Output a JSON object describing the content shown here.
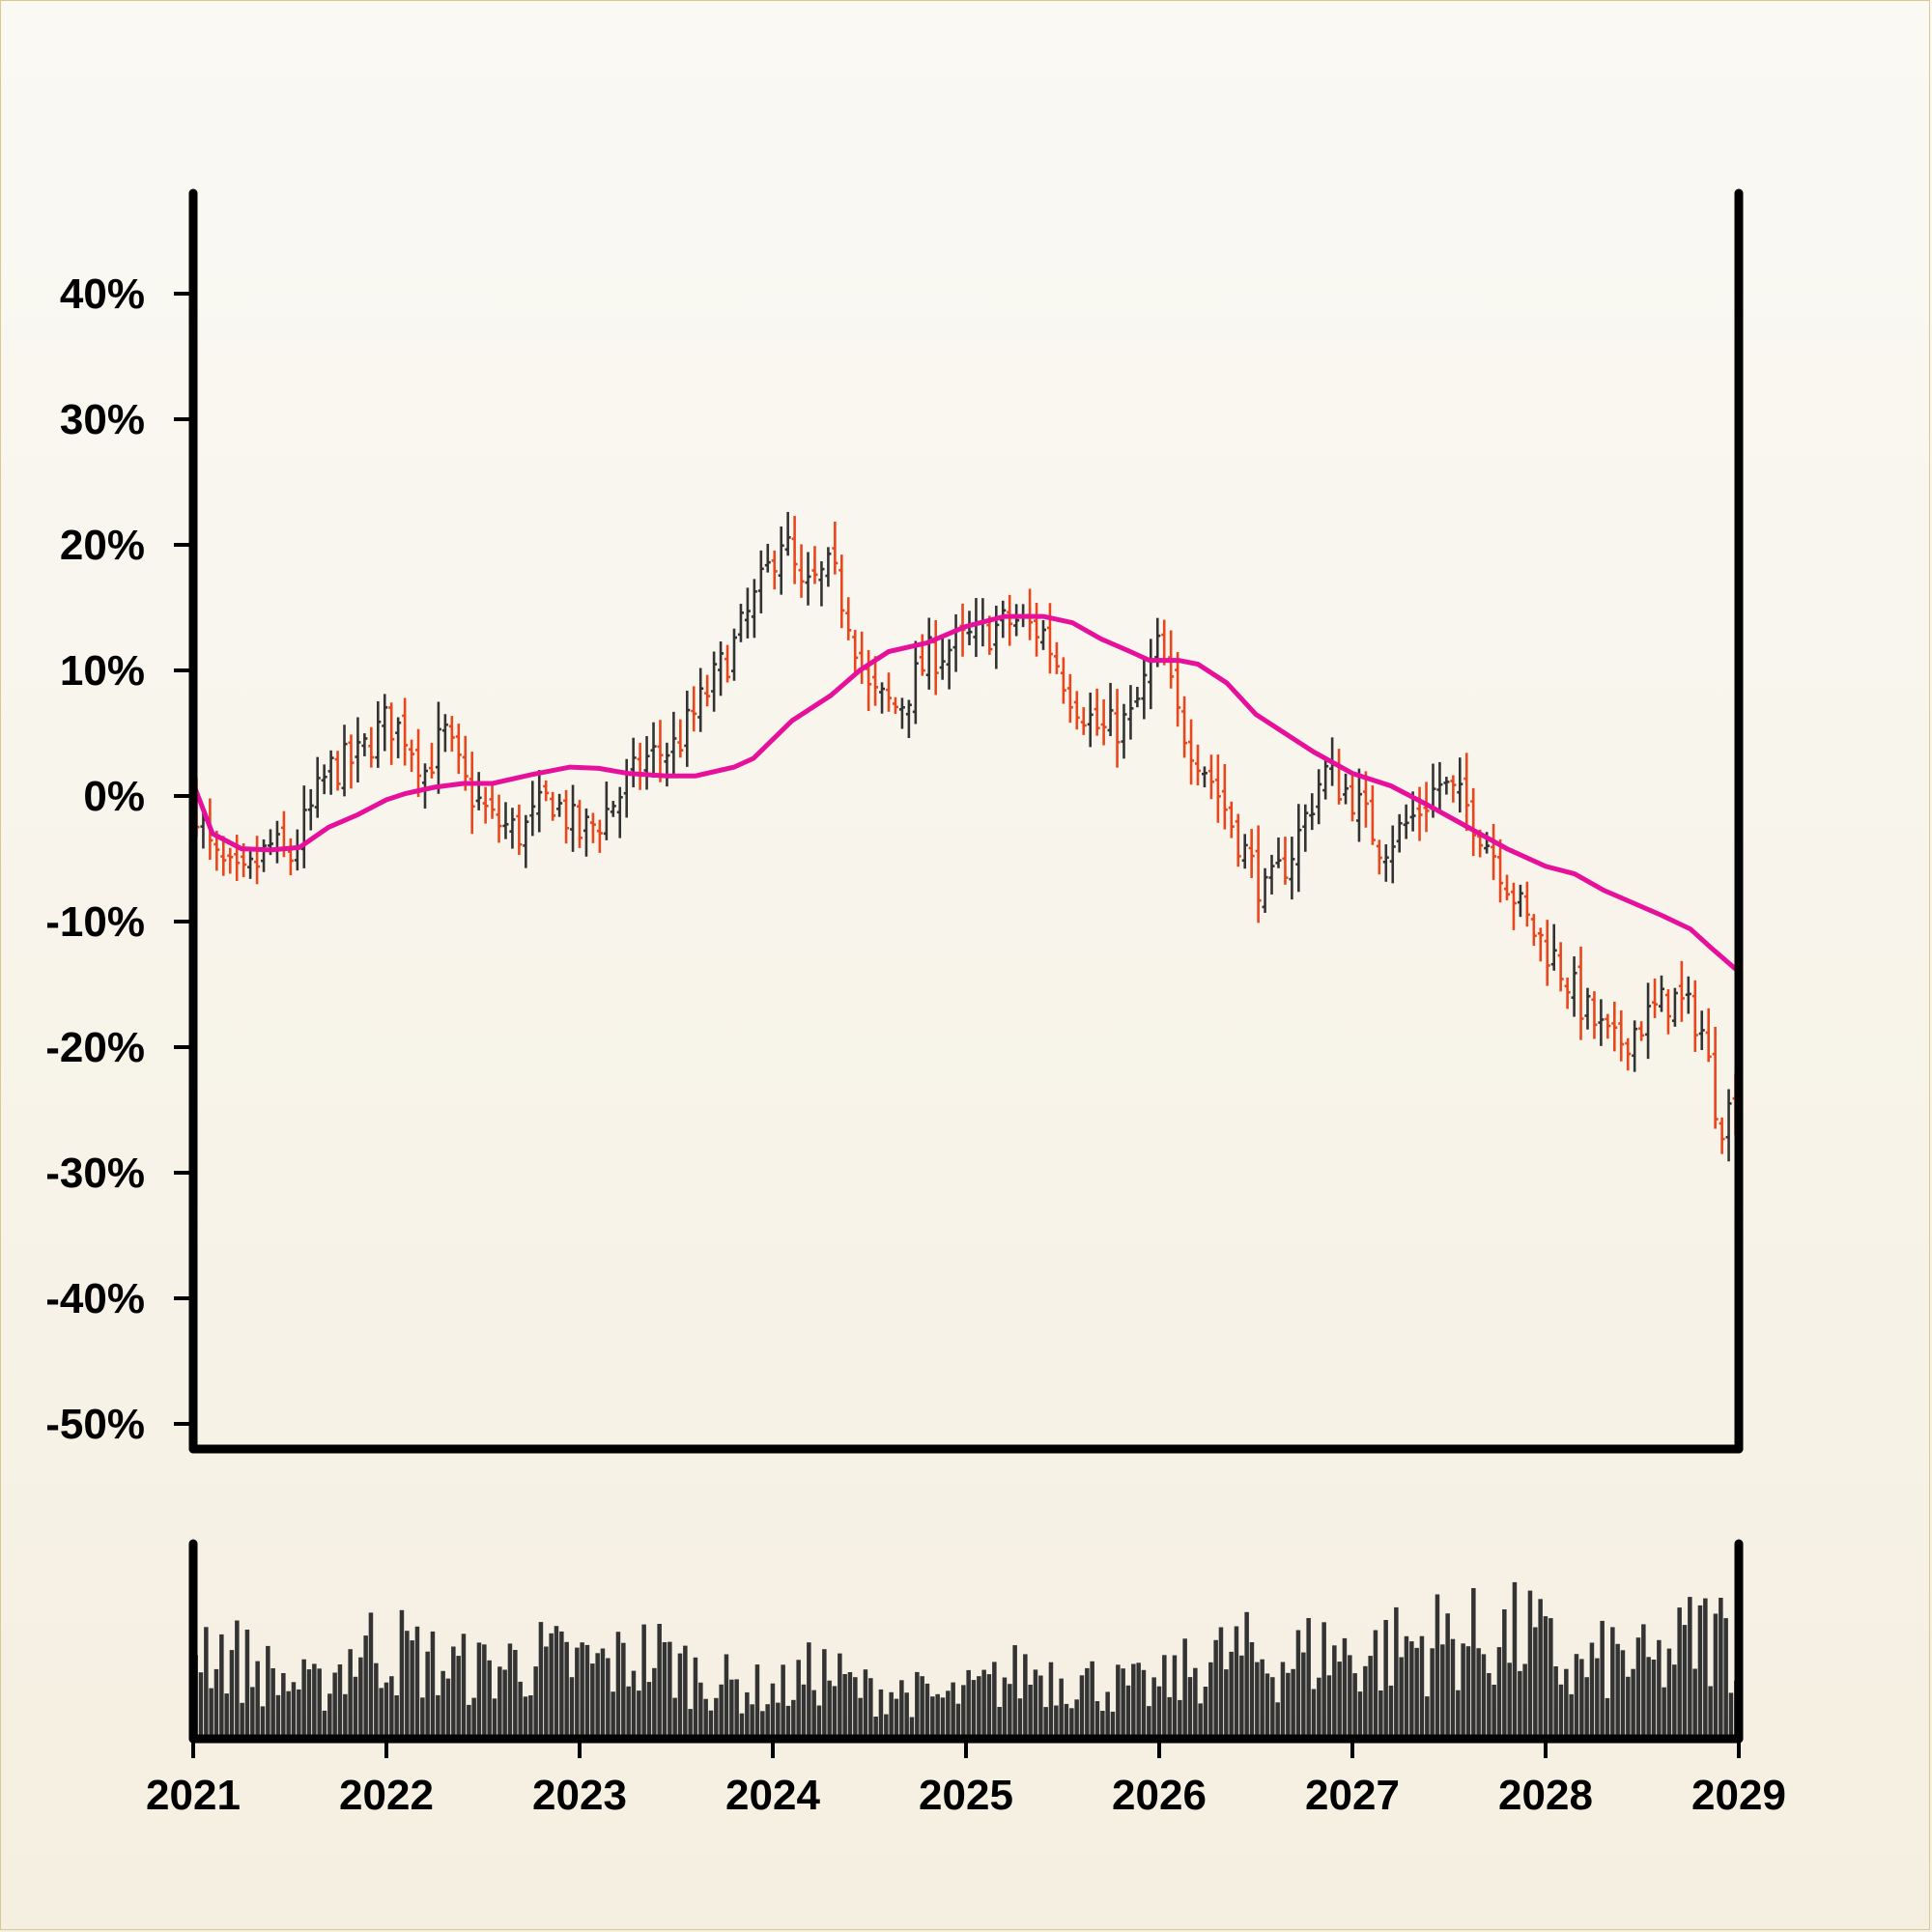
{
  "chart_data": {
    "type": "ohlc",
    "price_axis": {
      "ylim": [
        -52,
        48
      ],
      "ticks": [
        40,
        30,
        20,
        10,
        0,
        -10,
        -20,
        -30,
        -40,
        -50
      ],
      "tick_labels": [
        "40%",
        "30%",
        "20%",
        "10%",
        "0%",
        "-10%",
        "-20%",
        "-30%",
        "-40%",
        "-50%"
      ]
    },
    "x_axis": {
      "range": [
        2021.0,
        2029.0
      ],
      "ticks": [
        2021,
        2022,
        2023,
        2024,
        2025,
        2026,
        2027,
        2028,
        2029
      ],
      "tick_labels": [
        "2021",
        "2022",
        "2023",
        "2024",
        "2025",
        "2026",
        "2027",
        "2028",
        "2029"
      ]
    },
    "colors": {
      "up_bar": "#333333",
      "down_bar": "#e8471e",
      "moving_average": "#e6109a",
      "volume": "#333333",
      "axes": "#000000"
    },
    "approx_close_path": {
      "x": [
        2021.0,
        2021.1,
        2021.25,
        2021.4,
        2021.5,
        2021.7,
        2021.85,
        2022.0,
        2022.1,
        2022.2,
        2022.3,
        2022.4,
        2022.55,
        2022.7,
        2022.85,
        2023.0,
        2023.1,
        2023.2,
        2023.35,
        2023.5,
        2023.65,
        2023.8,
        2023.95,
        2024.05,
        2024.15,
        2024.3,
        2024.4,
        2024.5,
        2024.65,
        2024.8,
        2024.95,
        2025.1,
        2025.25,
        2025.4,
        2025.55,
        2025.7,
        2025.85,
        2026.0,
        2026.1,
        2026.25,
        2026.4,
        2026.55,
        2026.7,
        2026.85,
        2027.0,
        2027.15,
        2027.3,
        2027.45,
        2027.6,
        2027.75,
        2027.9,
        2028.05,
        2028.2,
        2028.35,
        2028.5,
        2028.65,
        2028.8,
        2028.9,
        2029.0
      ],
      "y": [
        0,
        -5,
        -7,
        -4,
        -5,
        2,
        3,
        6,
        5,
        2,
        5,
        1,
        -2,
        -3,
        0,
        -3,
        -2,
        0,
        3,
        4,
        8,
        12,
        17,
        21,
        16,
        18,
        14,
        8,
        7,
        11,
        12,
        13,
        14,
        13,
        8,
        5,
        6,
        12,
        6,
        2,
        -3,
        -8,
        -4,
        2,
        0,
        -4,
        -2,
        1,
        -1,
        -5,
        -10,
        -13,
        -17,
        -20,
        -18,
        -16,
        -18,
        -26,
        -24
      ]
    },
    "moving_average": {
      "x": [
        2021.0,
        2021.1,
        2021.25,
        2021.4,
        2021.55,
        2021.7,
        2021.85,
        2022.0,
        2022.1,
        2022.25,
        2022.4,
        2022.55,
        2022.75,
        2022.95,
        2023.1,
        2023.25,
        2023.45,
        2023.6,
        2023.8,
        2023.9,
        2024.1,
        2024.3,
        2024.45,
        2024.6,
        2024.8,
        2025.0,
        2025.2,
        2025.4,
        2025.55,
        2025.7,
        2025.85,
        2025.95,
        2026.1,
        2026.2,
        2026.35,
        2026.5,
        2026.65,
        2026.8,
        2027.0,
        2027.2,
        2027.4,
        2027.6,
        2027.8,
        2028.0,
        2028.15,
        2028.3,
        2028.45,
        2028.6,
        2028.75,
        2028.85,
        2029.0
      ],
      "y": [
        1,
        -3,
        -4.2,
        -4.3,
        -4.1,
        -2.5,
        -1.5,
        -0.3,
        0.2,
        0.7,
        1.0,
        1.0,
        1.7,
        2.3,
        2.2,
        1.8,
        1.6,
        1.6,
        2.3,
        3.0,
        6.0,
        8.0,
        10.0,
        11.5,
        12.2,
        13.5,
        14.3,
        14.3,
        13.8,
        12.5,
        11.5,
        10.8,
        10.8,
        10.5,
        9.0,
        6.5,
        5.0,
        3.5,
        1.8,
        0.8,
        -0.8,
        -2.5,
        -4.2,
        -5.6,
        -6.2,
        -7.5,
        -8.5,
        -9.5,
        -10.6,
        -12.0,
        -14.0
      ]
    },
    "volume": {
      "approx_levels": [
        0.62,
        0.48,
        0.35,
        0.28,
        0.55,
        0.52,
        0.42,
        0.4,
        0.47,
        0.45,
        0.43,
        0.5,
        0.38,
        0.3,
        0.27,
        0.4,
        0.28,
        0.27,
        0.22,
        0.3,
        0.4,
        0.36,
        0.3,
        0.28,
        0.42,
        0.5,
        0.45,
        0.52,
        0.48,
        0.55,
        0.6,
        0.58,
        0.62,
        0.38,
        0.48,
        0.42,
        0.62,
        0.6
      ]
    }
  }
}
